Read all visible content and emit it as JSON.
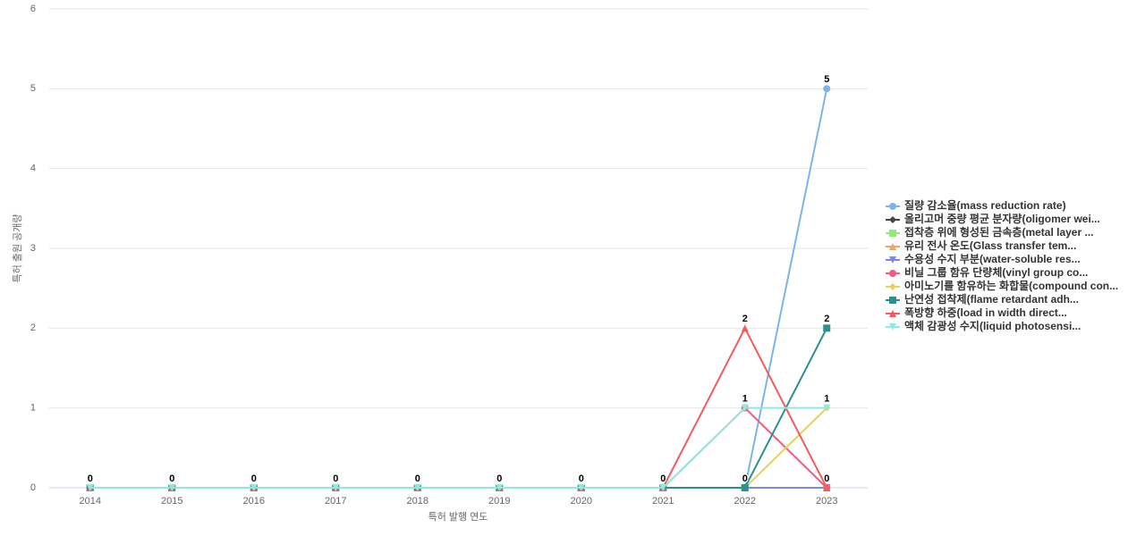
{
  "chart_data": {
    "type": "line",
    "x_label": "특허 발행 연도",
    "y_label": "특허 출원 공개량",
    "categories": [
      "2014",
      "2015",
      "2016",
      "2017",
      "2018",
      "2019",
      "2020",
      "2021",
      "2022",
      "2023"
    ],
    "ylim": [
      0,
      6
    ],
    "yticks": [
      0,
      1,
      2,
      3,
      4,
      5,
      6
    ],
    "grid": true,
    "legend": "right",
    "series": [
      {
        "name": "질량 감소율(mass reduction rate)",
        "color": "#7cb5ec",
        "marker": "circle",
        "values": [
          0,
          0,
          0,
          0,
          0,
          0,
          0,
          0,
          0,
          5
        ]
      },
      {
        "name": "올리고머 중량 평균 분자량(oligomer wei...",
        "color": "#434348",
        "marker": "diamond",
        "values": [
          0,
          0,
          0,
          0,
          0,
          0,
          0,
          0,
          0,
          0
        ]
      },
      {
        "name": "접착층 위에 형성된 금속층(metal layer ...",
        "color": "#90ed7d",
        "marker": "square",
        "values": [
          0,
          0,
          0,
          0,
          0,
          0,
          0,
          0,
          0,
          0
        ]
      },
      {
        "name": "유리 전사 온도(Glass transfer tem...",
        "color": "#f7a35c",
        "marker": "triangle",
        "values": [
          0,
          0,
          0,
          0,
          0,
          0,
          0,
          0,
          0,
          0
        ]
      },
      {
        "name": "수용성 수지 부분(water-soluble res...",
        "color": "#8085e9",
        "marker": "triangle-down",
        "values": [
          0,
          0,
          0,
          0,
          0,
          0,
          0,
          0,
          0,
          0
        ]
      },
      {
        "name": "비닐 그룹 함유 단량체(vinyl group co...",
        "color": "#f15c80",
        "marker": "circle",
        "values": [
          0,
          0,
          0,
          0,
          0,
          0,
          0,
          0,
          1,
          0
        ]
      },
      {
        "name": "아미노기를 함유하는 화합물(compound con...",
        "color": "#e4d354",
        "marker": "diamond",
        "values": [
          0,
          0,
          0,
          0,
          0,
          0,
          0,
          0,
          0,
          1
        ]
      },
      {
        "name": "난연성 접착제(flame retardant adh...",
        "color": "#2b908f",
        "marker": "square",
        "values": [
          0,
          0,
          0,
          0,
          0,
          0,
          0,
          0,
          0,
          2
        ]
      },
      {
        "name": "폭방향 하중(load in width direct...",
        "color": "#f45b5b",
        "marker": "triangle",
        "values": [
          0,
          0,
          0,
          0,
          0,
          0,
          0,
          0,
          2,
          0
        ]
      },
      {
        "name": "액체 감광성 수지(liquid photosensi...",
        "color": "#91e8e1",
        "marker": "triangle-down",
        "values": [
          0,
          0,
          0,
          0,
          0,
          0,
          0,
          0,
          1,
          1
        ]
      }
    ]
  }
}
